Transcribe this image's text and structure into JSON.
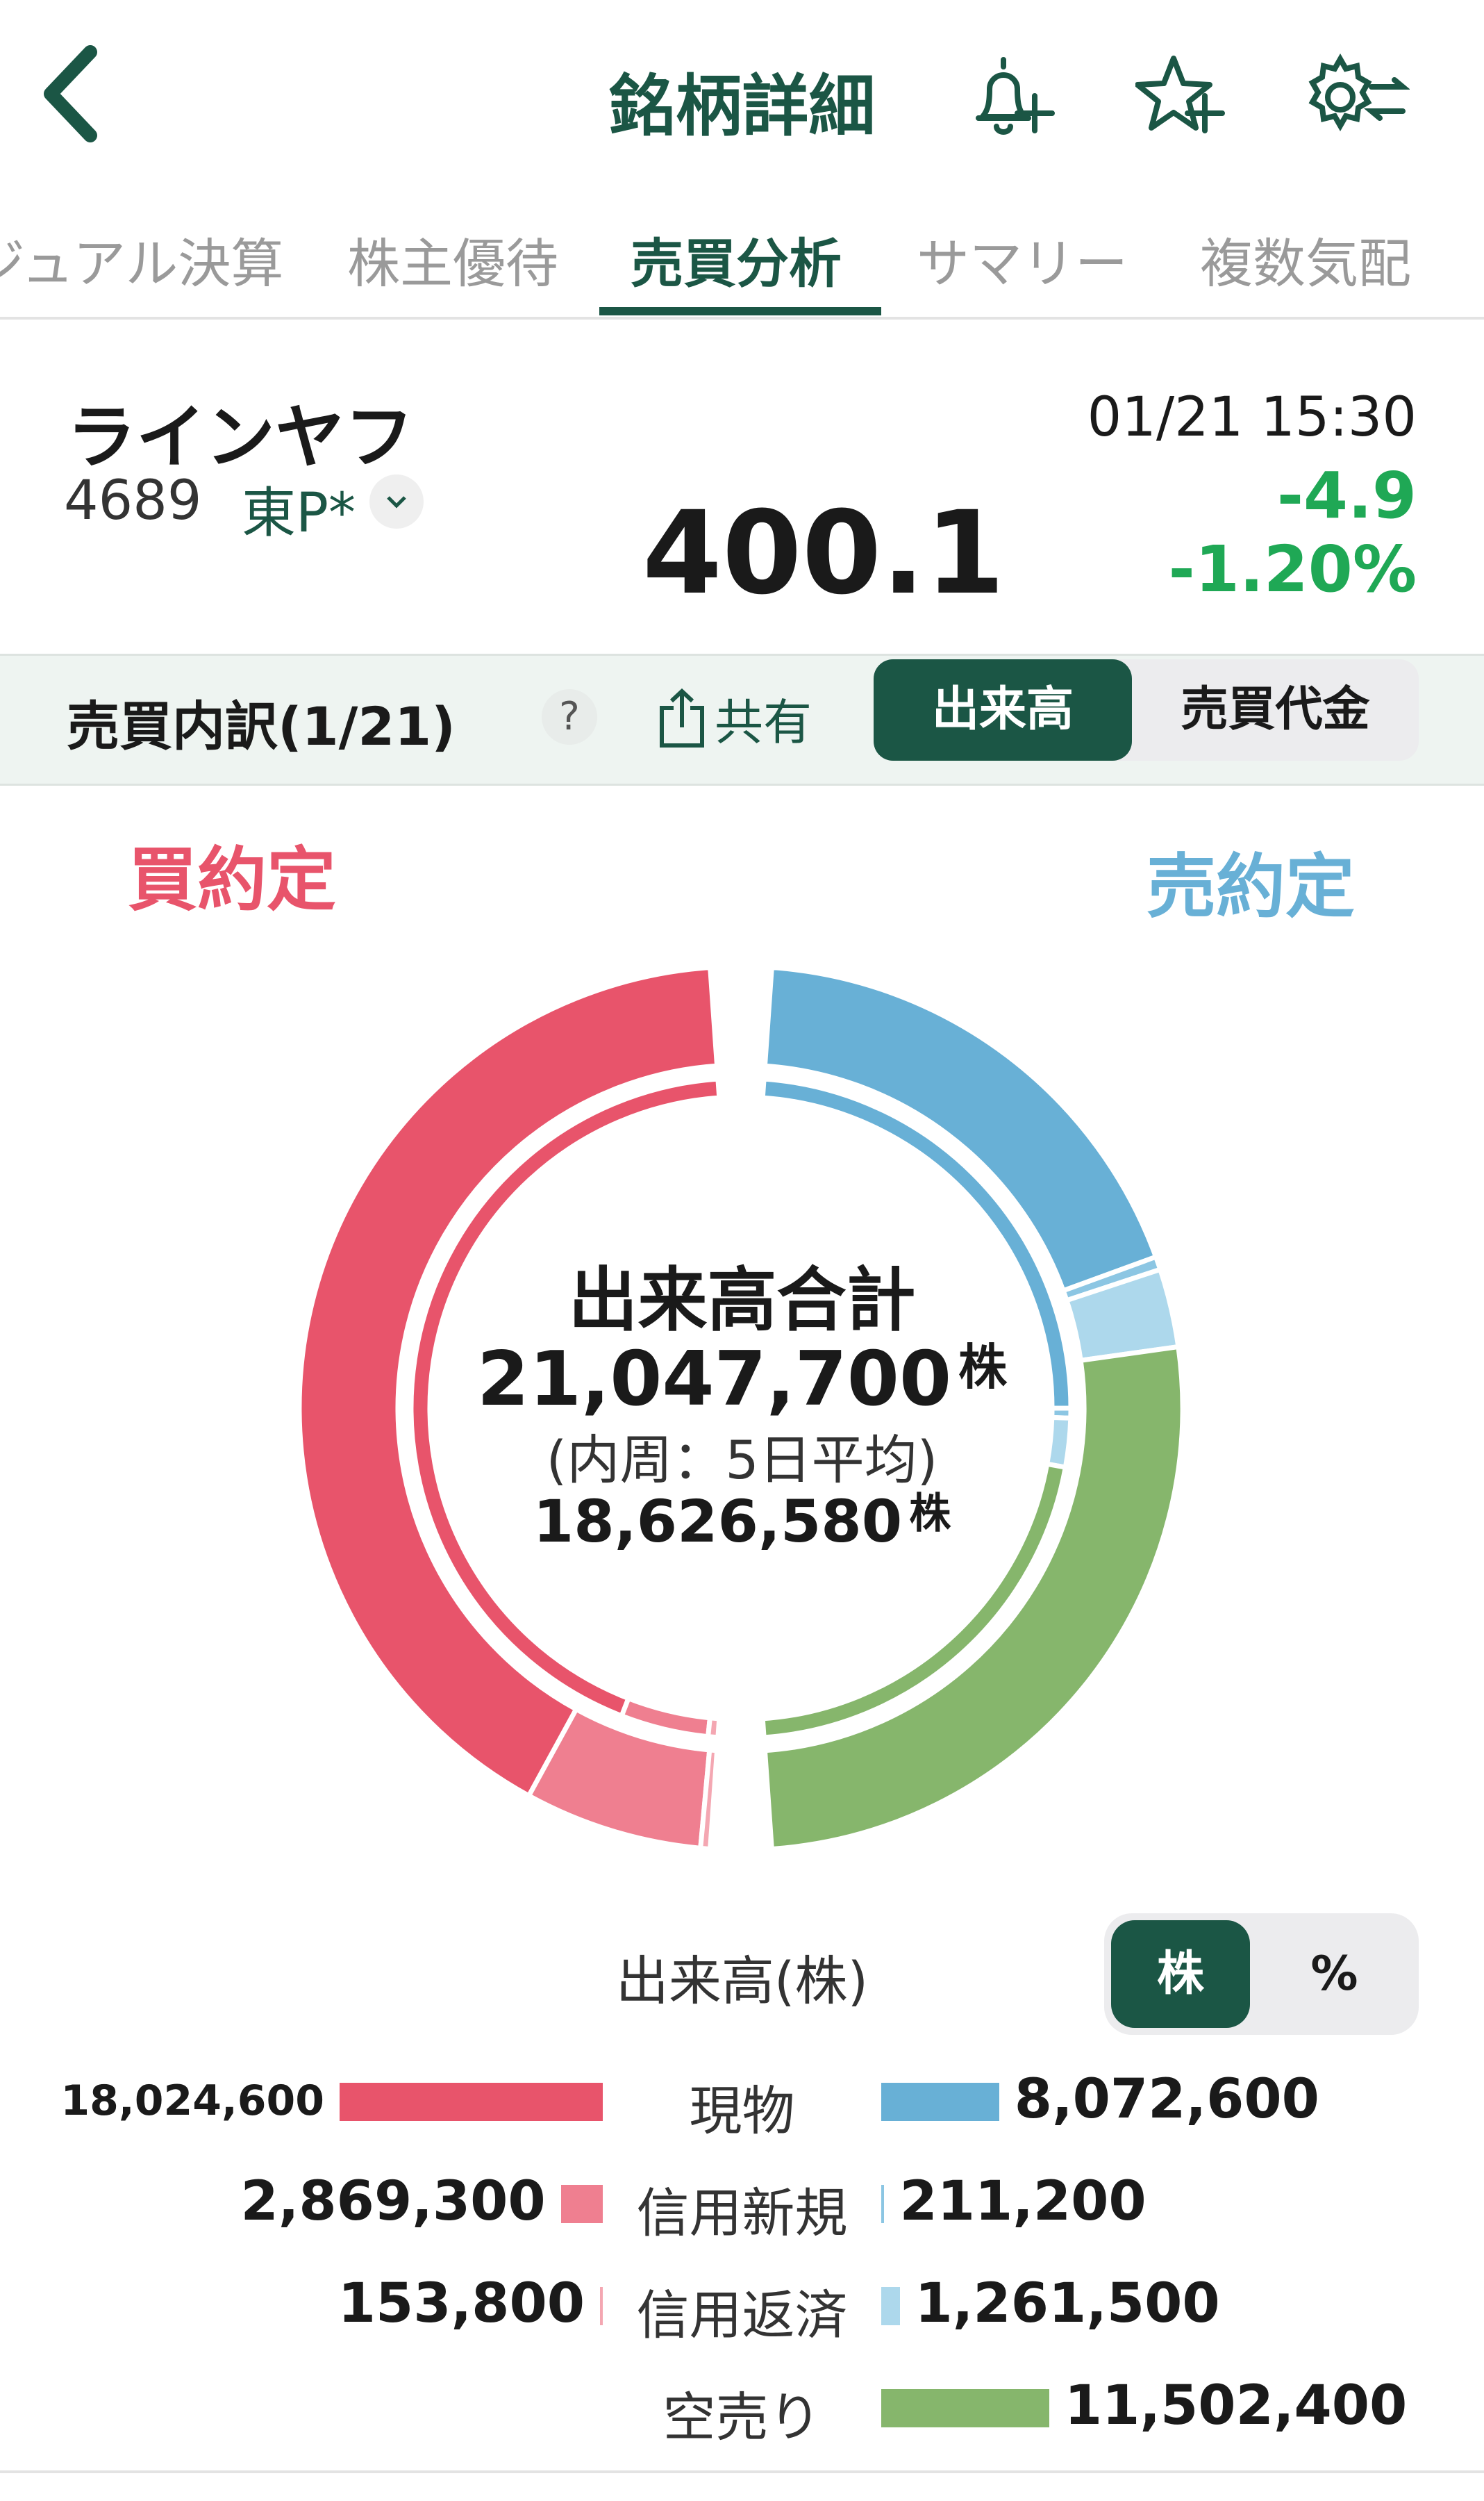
{
  "header": {
    "title": "銘柄詳細",
    "icons": [
      "back-chevron-icon",
      "bell-plus-icon",
      "star-plus-icon",
      "gear-swap-icon"
    ]
  },
  "tabs": [
    {
      "label": "ジュアル決算"
    },
    {
      "label": "株主優待"
    },
    {
      "label": "売買分析",
      "active": true
    },
    {
      "label": "サマリー"
    },
    {
      "label": "複数気配"
    }
  ],
  "stock": {
    "name": "ラインヤフ",
    "code": "4689",
    "market": "東P*",
    "datetime": "01/21 15:30",
    "price": "400.1",
    "change": "-4.9",
    "change_pct": "-1.20%"
  },
  "breakdown": {
    "title": "売買内訳(1/21)",
    "help": "?",
    "share": "共有",
    "toggle": [
      "出来高",
      "売買代金"
    ],
    "active": "出来高"
  },
  "sides": {
    "buy": "買約定",
    "sell": "売約定"
  },
  "center": {
    "title": "出来高合計",
    "total": "21,047,700",
    "unit": "株",
    "inner_label": "(内周：5日平均)",
    "inner_total": "18,626,580"
  },
  "colors": {
    "accent": "#1b5645",
    "buy_cash": "#e8546b",
    "buy_margin_new": "#ef7f90",
    "buy_margin_close": "#f4a7b2",
    "sell_cash": "#68b0d6",
    "sell_margin_new": "#8cc6e3",
    "sell_margin_close": "#add8ec",
    "short": "#86b66c",
    "up_down": "#1fa855"
  },
  "chart_data": {
    "type": "donut",
    "outer": {
      "buy": [
        {
          "name": "現物",
          "value": 18024600
        },
        {
          "name": "信用新規",
          "value": 2869300
        },
        {
          "name": "信用返済",
          "value": 153800
        }
      ],
      "sell": [
        {
          "name": "現物",
          "value": 8072600
        },
        {
          "name": "信用新規",
          "value": 211200
        },
        {
          "name": "信用返済",
          "value": 1261500
        },
        {
          "name": "空売り",
          "value": 11502400
        }
      ]
    },
    "inner_fractions_estimated": {
      "buy": [
        0.9,
        0.09,
        0.01
      ],
      "sell": [
        0.5,
        0.01,
        0.05,
        0.44
      ]
    }
  },
  "legend": {
    "title": "出来高(株)",
    "toggle": [
      "株",
      "%"
    ],
    "active": "株",
    "rows": [
      {
        "label": "現物",
        "buy": "18,024,600",
        "sell": "8,072,600",
        "buy_value": 18024600,
        "sell_value": 8072600
      },
      {
        "label": "信用新規",
        "buy": "2,869,300",
        "sell": "211,200",
        "buy_value": 2869300,
        "sell_value": 211200
      },
      {
        "label": "信用返済",
        "buy": "153,800",
        "sell": "1,261,500",
        "buy_value": 153800,
        "sell_value": 1261500
      },
      {
        "label": "空売り",
        "sell": "11,502,400",
        "sell_value": 11502400
      }
    ]
  }
}
